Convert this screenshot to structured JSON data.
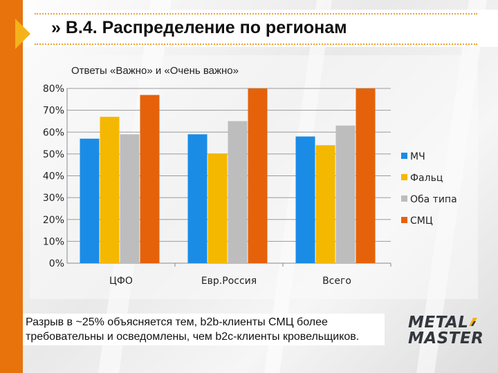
{
  "slide": {
    "title": "» В.4. Распределение по регионам",
    "note": "Разрыв в ~25% объясняется тем, b2b-клиенты СМЦ более требовательны и осведомлены, чем b2c-клиенты кровельщиков.",
    "logo_line1": "METAL",
    "logo_line2": "MASTER"
  },
  "colors": {
    "accent": "#e8730c",
    "arrow": "#f5b21a"
  },
  "chart_data": {
    "type": "bar",
    "title": "Ответы «Важно» и «Очень важно»",
    "categories": [
      "ЦФО",
      "Евр.Россия",
      "Всего"
    ],
    "series": [
      {
        "name": "МЧ",
        "color": "#1a8ce6",
        "values": [
          57,
          59,
          58
        ]
      },
      {
        "name": "Фальц",
        "color": "#f5b800",
        "values": [
          67,
          50,
          54
        ]
      },
      {
        "name": "Оба типа",
        "color": "#bdbdbd",
        "values": [
          59,
          65,
          63
        ]
      },
      {
        "name": "СМЦ",
        "color": "#e5620b",
        "values": [
          77,
          80,
          80
        ]
      }
    ],
    "ylim": [
      0,
      80
    ],
    "yticks": [
      0,
      10,
      20,
      30,
      40,
      50,
      60,
      70,
      80
    ],
    "ytick_labels": [
      "0%",
      "10%",
      "20%",
      "30%",
      "40%",
      "50%",
      "60%",
      "70%",
      "80%"
    ],
    "grid": true,
    "legend_position": "right"
  }
}
